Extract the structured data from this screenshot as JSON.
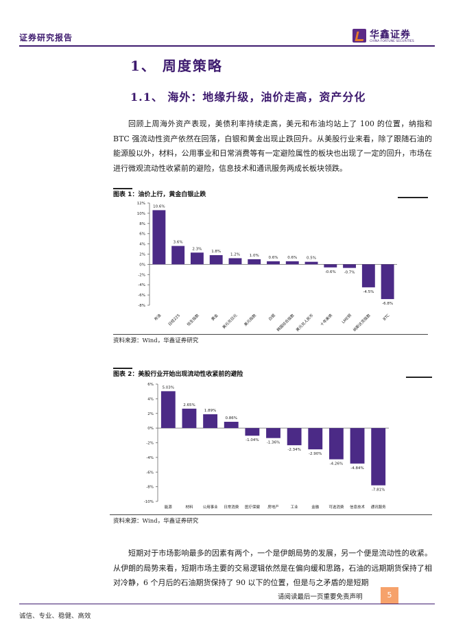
{
  "header": {
    "title": "证券研究报告",
    "logo_cn": "华鑫证券",
    "logo_en": "CHINA FORTUNE SECURITIES"
  },
  "section": {
    "h1": "1、 周度策略",
    "h2": "1.1、 海外：地缘升级，油价走高，资产分化"
  },
  "paragraphs": {
    "p1": "回顾上周海外资产表现，美债利率持续走高，美元和布油均站上了 100 的位置，纳指和 BTC 强流动性资产依然在回落，白银和黄金出现止跌回升。从美股行业来看，除了跟随石油的能源股以外，材料，公用事业和日常消费等有一定避险属性的板块也出现了一定的回升，市场在进行微观流动性收紧前的避险，信息技术和通讯服务两成长板块领跌。",
    "p2": "短期对于市场影响最多的因素有两个，一个是伊朗局势的发展，另一个便是流动性的收紧。从伊朗的局势来看，短期市场主要的交易逻辑依然是在偏向缓和思路，石油的远期期货保持了相对冷静，6 个月后的石油期货保持了 90 以下的位置，但是与之矛盾的是短期"
  },
  "figure1": {
    "title": "图表 1：油价上行，黄金白银止跌",
    "source": "资料来源：Wind，华鑫证券研究"
  },
  "figure2": {
    "title": "图表 2：美股行业开始出现流动性收紧前的避险",
    "source": "资料来源：Wind，华鑫证券研究"
  },
  "chart_data": [
    {
      "type": "bar",
      "categories": [
        "布油",
        "日经225",
        "恒生指数",
        "黄金",
        "美元兑日元",
        "美元指数",
        "白银",
        "韩国综合指数",
        "美元兑人民币",
        "十年美债",
        "LME铜",
        "纳斯达克指数",
        "BTC"
      ],
      "values": [
        10.6,
        3.6,
        2.3,
        1.8,
        1.2,
        1.0,
        0.6,
        0.6,
        0.5,
        -0.6,
        -0.7,
        -4.5,
        -6.8
      ],
      "value_labels": [
        "10.6%",
        "3.6%",
        "2.3%",
        "1.8%",
        "1.2%",
        "1.0%",
        "0.6%",
        "0.6%",
        "0.5%",
        "-0.6%",
        "-0.7%",
        "-4.5%",
        "-6.8%"
      ],
      "yticks": [
        "12%",
        "10%",
        "8%",
        "6%",
        "4%",
        "2%",
        "0%",
        "-2%",
        "-4%",
        "-6%",
        "-8%"
      ],
      "ylim": [
        -8,
        12
      ],
      "bar_color": "#4b2a86",
      "grid": false
    },
    {
      "type": "bar",
      "categories": [
        "能源",
        "材料",
        "公用事业",
        "日常消费",
        "医疗保健",
        "房地产",
        "工业",
        "金融",
        "可选消费",
        "信息技术",
        "通讯服务"
      ],
      "values": [
        5.03,
        2.65,
        1.89,
        0.86,
        -1.04,
        -1.36,
        -2.34,
        -2.9,
        -4.26,
        -4.84,
        -7.81
      ],
      "value_labels": [
        "5.03%",
        "2.65%",
        "1.89%",
        "0.86%",
        "-1.04%",
        "-1.36%",
        "-2.34%",
        "-2.90%",
        "-4.26%",
        "-4.84%",
        "-7.81%"
      ],
      "yticks": [
        "6%",
        "4%",
        "2%",
        "0%",
        "-2%",
        "-4%",
        "-6%",
        "-8%",
        "-10%"
      ],
      "ylim": [
        -10,
        6
      ],
      "bar_color": "#4b2a86",
      "grid": false
    }
  ],
  "footer": {
    "notice": "请阅读最后一页重要免责声明",
    "page": "5",
    "motto": "诚信、专业、稳健、高效"
  }
}
